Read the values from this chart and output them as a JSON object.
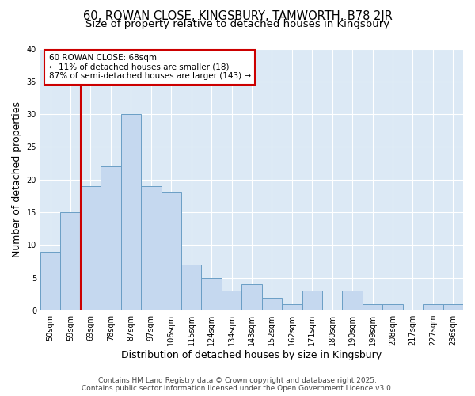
{
  "title_line1": "60, ROWAN CLOSE, KINGSBURY, TAMWORTH, B78 2JR",
  "title_line2": "Size of property relative to detached houses in Kingsbury",
  "xlabel": "Distribution of detached houses by size in Kingsbury",
  "ylabel": "Number of detached properties",
  "bins": [
    "50sqm",
    "59sqm",
    "69sqm",
    "78sqm",
    "87sqm",
    "97sqm",
    "106sqm",
    "115sqm",
    "124sqm",
    "134sqm",
    "143sqm",
    "152sqm",
    "162sqm",
    "171sqm",
    "180sqm",
    "190sqm",
    "199sqm",
    "208sqm",
    "217sqm",
    "227sqm",
    "236sqm"
  ],
  "values": [
    9,
    15,
    19,
    22,
    30,
    19,
    18,
    7,
    5,
    3,
    4,
    2,
    1,
    3,
    0,
    3,
    1,
    1,
    0,
    1,
    1
  ],
  "bar_color": "#c5d8ef",
  "bar_edge_color": "#6a9ec5",
  "marker_line_color": "#cc0000",
  "annotation_text": "60 ROWAN CLOSE: 68sqm\n← 11% of detached houses are smaller (18)\n87% of semi-detached houses are larger (143) →",
  "annotation_box_color": "#ffffff",
  "annotation_box_edge": "#cc0000",
  "bg_color": "#ffffff",
  "plot_bg_color": "#dce9f5",
  "grid_color": "#ffffff",
  "ylim": [
    0,
    40
  ],
  "yticks": [
    0,
    5,
    10,
    15,
    20,
    25,
    30,
    35,
    40
  ],
  "title_fontsize": 10.5,
  "subtitle_fontsize": 9.5,
  "axis_label_fontsize": 9,
  "tick_fontsize": 7,
  "annotation_fontsize": 7.5,
  "footer_fontsize": 6.5,
  "footer_line1": "Contains HM Land Registry data © Crown copyright and database right 2025.",
  "footer_line2": "Contains public sector information licensed under the Open Government Licence v3.0."
}
